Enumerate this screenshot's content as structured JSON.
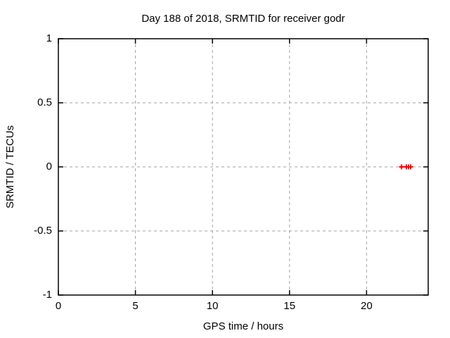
{
  "chart_data": {
    "type": "scatter",
    "title": "Day 188 of 2018, SRMTID for receiver godr",
    "xlabel": "GPS time / hours",
    "ylabel": "SRMTID / TECUs",
    "xlim": [
      0,
      24
    ],
    "ylim": [
      -1,
      1
    ],
    "xticks": {
      "values": [
        0,
        5,
        10,
        15,
        20
      ],
      "labels": [
        "0",
        "5",
        "10",
        "15",
        "20"
      ]
    },
    "yticks": {
      "values": [
        1,
        0.5,
        0,
        -0.5,
        -1
      ],
      "labels": [
        "1",
        "0.5",
        "0",
        "-0.5",
        "-1"
      ]
    },
    "grid": {
      "visible": true,
      "style": "dashed",
      "color": "#a0a0a0",
      "x_values": [
        5,
        10,
        15,
        20
      ],
      "y_values": [
        0.5,
        0,
        -0.5
      ]
    },
    "legend": {
      "visible": false
    },
    "series": [
      {
        "name": "SRMTID",
        "marker": "plus",
        "color": "#ff0000",
        "x": [
          22.27,
          22.58,
          22.72,
          22.86
        ],
        "y": [
          0,
          0,
          0,
          0
        ]
      }
    ],
    "colors": {
      "background": "#ffffff",
      "border": "#000000",
      "text": "#000000"
    }
  }
}
